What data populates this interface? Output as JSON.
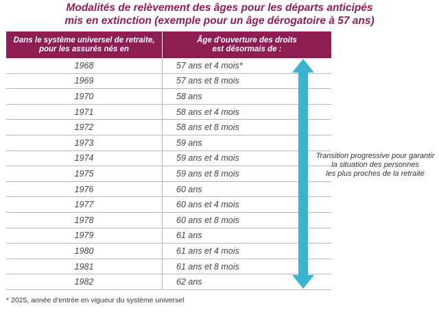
{
  "title": {
    "line1": "Modalités de relèvement des âges pour les départs anticipés",
    "line2": "mis en extinction (exemple pour un âge dérogatoire à 57 ans)"
  },
  "table": {
    "header_col1_line1": "Dans le système universel de retraite,",
    "header_col1_line2": "pour les assurés nés en",
    "header_col2_line1": "Âge d'ouverture des droits",
    "header_col2_line2": "est désormais de :",
    "rows": [
      {
        "year": "1968",
        "age": "57 ans et 4 mois*"
      },
      {
        "year": "1969",
        "age": "57 ans et 8 mois"
      },
      {
        "year": "1970",
        "age": "58 ans"
      },
      {
        "year": "1971",
        "age": "58 ans et 4 mois"
      },
      {
        "year": "1972",
        "age": "58 ans et 8 mois"
      },
      {
        "year": "1973",
        "age": "59 ans"
      },
      {
        "year": "1974",
        "age": "59 ans et 4 mois"
      },
      {
        "year": "1975",
        "age": "59 ans et 8 mois"
      },
      {
        "year": "1976",
        "age": "60 ans"
      },
      {
        "year": "1977",
        "age": "60 ans et 4 mois"
      },
      {
        "year": "1978",
        "age": "60 ans et 8 mois"
      },
      {
        "year": "1979",
        "age": "61 ans"
      },
      {
        "year": "1980",
        "age": "61 ans et 4 mois"
      },
      {
        "year": "1981",
        "age": "61 ans et 8 mois"
      },
      {
        "year": "1982",
        "age": "62 ans"
      }
    ]
  },
  "note": {
    "line1": "Transition progressive pour garantir",
    "line2": "la situation des personnes",
    "line3": "les plus proches de la retraite"
  },
  "footnote": "* 2025, année d'entrée en vigueur du système universel",
  "colors": {
    "header_bg": "#8e1d54",
    "title": "#8e1d54",
    "arrow": "#3ab4cf"
  },
  "icons": {
    "arrow": "double-headed-vertical-arrow"
  }
}
